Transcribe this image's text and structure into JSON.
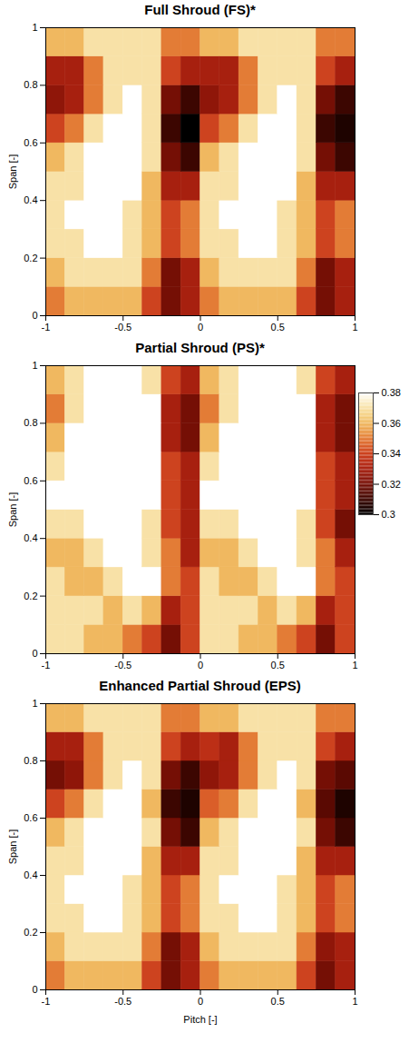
{
  "chart_data": [
    {
      "type": "heatmap",
      "title": "Full Shroud (FS)*",
      "ylabel": "Span [-]",
      "xlim": [
        -1,
        1
      ],
      "ylim": [
        0,
        1
      ],
      "xticks": [
        -1,
        -0.5,
        0,
        0.5,
        1
      ],
      "yticks": [
        0,
        0.2,
        0.4,
        0.6,
        0.8,
        1
      ],
      "x_edges": [
        -1,
        -0.875,
        -0.75,
        -0.625,
        -0.5,
        -0.375,
        -0.25,
        -0.125,
        0,
        0.125,
        0.25,
        0.375,
        0.5,
        0.625,
        0.75,
        0.875,
        1
      ],
      "y_edges": [
        0,
        0.1,
        0.2,
        0.3,
        0.4,
        0.5,
        0.6,
        0.7,
        0.8,
        0.9,
        1
      ],
      "values": [
        [
          0.35,
          0.36,
          0.36,
          0.36,
          0.36,
          0.34,
          0.32,
          0.33,
          0.35,
          0.36,
          0.36,
          0.36,
          0.36,
          0.34,
          0.32,
          0.33
        ],
        [
          0.36,
          0.37,
          0.37,
          0.37,
          0.37,
          0.35,
          0.32,
          0.33,
          0.36,
          0.37,
          0.37,
          0.37,
          0.37,
          0.35,
          0.32,
          0.33
        ],
        [
          0.37,
          0.37,
          0.38,
          0.38,
          0.37,
          0.36,
          0.34,
          0.35,
          0.37,
          0.37,
          0.38,
          0.38,
          0.37,
          0.36,
          0.34,
          0.35
        ],
        [
          0.37,
          0.38,
          0.38,
          0.38,
          0.37,
          0.36,
          0.34,
          0.35,
          0.37,
          0.38,
          0.38,
          0.38,
          0.37,
          0.36,
          0.34,
          0.35
        ],
        [
          0.37,
          0.37,
          0.38,
          0.38,
          0.38,
          0.36,
          0.33,
          0.33,
          0.37,
          0.37,
          0.38,
          0.38,
          0.38,
          0.36,
          0.33,
          0.33
        ],
        [
          0.36,
          0.37,
          0.38,
          0.38,
          0.38,
          0.37,
          0.32,
          0.31,
          0.36,
          0.37,
          0.38,
          0.38,
          0.38,
          0.37,
          0.32,
          0.31
        ],
        [
          0.34,
          0.35,
          0.37,
          0.38,
          0.38,
          0.37,
          0.31,
          0.3,
          0.34,
          0.35,
          0.37,
          0.38,
          0.38,
          0.37,
          0.31,
          0.305
        ],
        [
          0.325,
          0.33,
          0.35,
          0.37,
          0.38,
          0.37,
          0.32,
          0.31,
          0.325,
          0.33,
          0.35,
          0.37,
          0.38,
          0.37,
          0.32,
          0.31
        ],
        [
          0.33,
          0.33,
          0.35,
          0.37,
          0.37,
          0.37,
          0.34,
          0.33,
          0.33,
          0.33,
          0.35,
          0.37,
          0.37,
          0.37,
          0.34,
          0.33
        ],
        [
          0.36,
          0.36,
          0.37,
          0.37,
          0.37,
          0.37,
          0.35,
          0.35,
          0.36,
          0.36,
          0.37,
          0.37,
          0.37,
          0.37,
          0.35,
          0.35
        ]
      ]
    },
    {
      "type": "heatmap",
      "title": "Partial Shroud (PS)*",
      "ylabel": "Span [-]",
      "xlim": [
        -1,
        1
      ],
      "ylim": [
        0,
        1
      ],
      "xticks": [
        -1,
        -0.5,
        0,
        0.5,
        1
      ],
      "yticks": [
        0,
        0.2,
        0.4,
        0.6,
        0.8,
        1
      ],
      "x_edges": [
        -1,
        -0.875,
        -0.75,
        -0.625,
        -0.5,
        -0.375,
        -0.25,
        -0.125,
        0,
        0.125,
        0.25,
        0.375,
        0.5,
        0.625,
        0.75,
        0.875,
        1
      ],
      "y_edges": [
        0,
        0.1,
        0.2,
        0.3,
        0.4,
        0.5,
        0.6,
        0.7,
        0.8,
        0.9,
        1
      ],
      "values": [
        [
          0.37,
          0.37,
          0.36,
          0.36,
          0.35,
          0.34,
          0.32,
          0.34,
          0.37,
          0.37,
          0.36,
          0.36,
          0.35,
          0.34,
          0.32,
          0.34
        ],
        [
          0.37,
          0.37,
          0.37,
          0.36,
          0.37,
          0.36,
          0.33,
          0.34,
          0.37,
          0.37,
          0.37,
          0.36,
          0.37,
          0.36,
          0.33,
          0.34
        ],
        [
          0.37,
          0.36,
          0.36,
          0.37,
          0.38,
          0.38,
          0.35,
          0.34,
          0.37,
          0.36,
          0.36,
          0.37,
          0.38,
          0.38,
          0.35,
          0.34
        ],
        [
          0.36,
          0.36,
          0.37,
          0.38,
          0.38,
          0.37,
          0.35,
          0.33,
          0.36,
          0.36,
          0.37,
          0.38,
          0.38,
          0.37,
          0.35,
          0.33
        ],
        [
          0.37,
          0.37,
          0.38,
          0.38,
          0.38,
          0.37,
          0.34,
          0.33,
          0.37,
          0.37,
          0.38,
          0.38,
          0.38,
          0.37,
          0.34,
          0.32
        ],
        [
          0.38,
          0.38,
          0.38,
          0.38,
          0.38,
          0.38,
          0.34,
          0.33,
          0.38,
          0.38,
          0.38,
          0.38,
          0.38,
          0.38,
          0.34,
          0.33
        ],
        [
          0.37,
          0.38,
          0.38,
          0.38,
          0.38,
          0.38,
          0.34,
          0.33,
          0.37,
          0.38,
          0.38,
          0.38,
          0.38,
          0.38,
          0.34,
          0.33
        ],
        [
          0.36,
          0.38,
          0.38,
          0.38,
          0.38,
          0.38,
          0.33,
          0.32,
          0.36,
          0.38,
          0.38,
          0.38,
          0.38,
          0.38,
          0.33,
          0.32
        ],
        [
          0.35,
          0.37,
          0.38,
          0.38,
          0.38,
          0.38,
          0.33,
          0.32,
          0.35,
          0.37,
          0.38,
          0.38,
          0.38,
          0.38,
          0.33,
          0.32
        ],
        [
          0.36,
          0.37,
          0.38,
          0.38,
          0.38,
          0.37,
          0.34,
          0.33,
          0.36,
          0.37,
          0.38,
          0.38,
          0.38,
          0.37,
          0.34,
          0.33
        ]
      ],
      "colorbar": {
        "range": [
          0.3,
          0.38
        ],
        "ticks": [
          0.3,
          0.32,
          0.34,
          0.36,
          0.38
        ]
      }
    },
    {
      "type": "heatmap",
      "title": "Enhanced Partial Shroud (EPS)",
      "xlabel": "Pitch [-]",
      "ylabel": "Span [-]",
      "xlim": [
        -1,
        1
      ],
      "ylim": [
        0,
        1
      ],
      "xticks": [
        -1,
        -0.5,
        0,
        0.5,
        1
      ],
      "yticks": [
        0,
        0.2,
        0.4,
        0.6,
        0.8,
        1
      ],
      "x_edges": [
        -1,
        -0.875,
        -0.75,
        -0.625,
        -0.5,
        -0.375,
        -0.25,
        -0.125,
        0,
        0.125,
        0.25,
        0.375,
        0.5,
        0.625,
        0.75,
        0.875,
        1
      ],
      "y_edges": [
        0,
        0.1,
        0.2,
        0.3,
        0.4,
        0.5,
        0.6,
        0.7,
        0.8,
        0.9,
        1
      ],
      "values": [
        [
          0.35,
          0.36,
          0.36,
          0.36,
          0.36,
          0.34,
          0.32,
          0.33,
          0.35,
          0.36,
          0.36,
          0.36,
          0.36,
          0.34,
          0.32,
          0.33
        ],
        [
          0.36,
          0.37,
          0.37,
          0.37,
          0.37,
          0.35,
          0.32,
          0.33,
          0.36,
          0.37,
          0.37,
          0.37,
          0.37,
          0.35,
          0.325,
          0.33
        ],
        [
          0.37,
          0.37,
          0.38,
          0.38,
          0.37,
          0.36,
          0.34,
          0.35,
          0.37,
          0.37,
          0.38,
          0.38,
          0.37,
          0.36,
          0.34,
          0.35
        ],
        [
          0.37,
          0.38,
          0.38,
          0.38,
          0.37,
          0.36,
          0.34,
          0.35,
          0.37,
          0.38,
          0.38,
          0.38,
          0.37,
          0.36,
          0.34,
          0.35
        ],
        [
          0.37,
          0.37,
          0.38,
          0.38,
          0.38,
          0.36,
          0.33,
          0.33,
          0.37,
          0.37,
          0.38,
          0.38,
          0.38,
          0.36,
          0.33,
          0.33
        ],
        [
          0.36,
          0.37,
          0.38,
          0.38,
          0.38,
          0.37,
          0.32,
          0.31,
          0.36,
          0.37,
          0.38,
          0.38,
          0.38,
          0.37,
          0.32,
          0.31
        ],
        [
          0.34,
          0.35,
          0.37,
          0.38,
          0.38,
          0.36,
          0.31,
          0.305,
          0.345,
          0.35,
          0.37,
          0.38,
          0.38,
          0.36,
          0.315,
          0.305
        ],
        [
          0.32,
          0.325,
          0.35,
          0.37,
          0.38,
          0.37,
          0.32,
          0.31,
          0.325,
          0.33,
          0.35,
          0.37,
          0.38,
          0.37,
          0.32,
          0.315
        ],
        [
          0.33,
          0.33,
          0.35,
          0.37,
          0.37,
          0.37,
          0.34,
          0.33,
          0.335,
          0.33,
          0.35,
          0.37,
          0.37,
          0.37,
          0.34,
          0.33
        ],
        [
          0.36,
          0.36,
          0.37,
          0.37,
          0.37,
          0.37,
          0.35,
          0.35,
          0.36,
          0.36,
          0.37,
          0.37,
          0.37,
          0.37,
          0.35,
          0.35
        ]
      ]
    }
  ]
}
